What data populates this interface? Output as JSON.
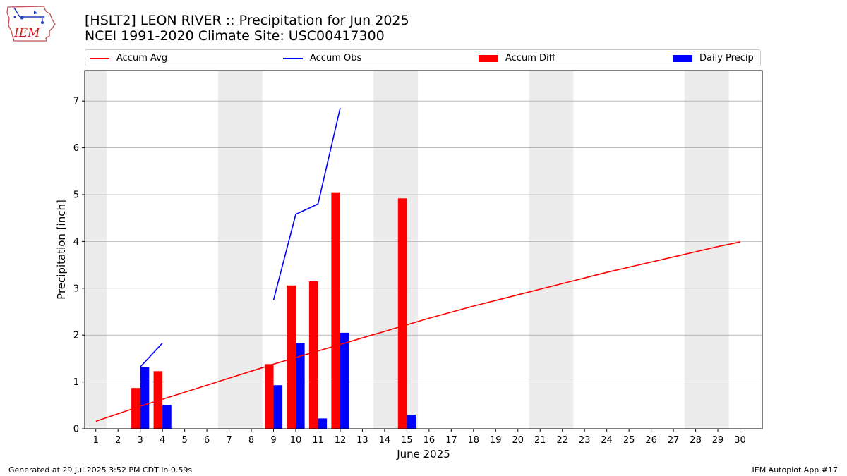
{
  "logo": {
    "text": "IEM"
  },
  "title_line1": "[HSLT2] LEON RIVER :: Precipitation for Jun 2025",
  "title_line2": "NCEI 1991-2020 Climate Site: USC00417300",
  "footer_left": "Generated at 29 Jul 2025 3:52 PM CDT in 0.59s",
  "footer_right": "IEM Autoplot App #17",
  "legend": [
    {
      "label": "Accum Avg",
      "kind": "line",
      "color": "#ff0000"
    },
    {
      "label": "Accum Obs",
      "kind": "line",
      "color": "#0000ff"
    },
    {
      "label": "Accum Diff",
      "kind": "patch",
      "color": "#ff0000"
    },
    {
      "label": "Daily Precip",
      "kind": "patch",
      "color": "#0000ff"
    }
  ],
  "chart_data": {
    "type": "bar",
    "xlabel": "June 2025",
    "ylabel": "Precipitation [inch]",
    "xlim": [
      0.5,
      31
    ],
    "ylim": [
      0,
      7.65
    ],
    "yticks": [
      0,
      1,
      2,
      3,
      4,
      5,
      6,
      7
    ],
    "xticks": [
      1,
      2,
      3,
      4,
      5,
      6,
      7,
      8,
      9,
      10,
      11,
      12,
      13,
      14,
      15,
      16,
      17,
      18,
      19,
      20,
      21,
      22,
      23,
      24,
      25,
      26,
      27,
      28,
      29,
      30
    ],
    "grid": "horizontal",
    "weekend_shading": [
      [
        0.5,
        1.5
      ],
      [
        6.5,
        8.5
      ],
      [
        13.5,
        15.5
      ],
      [
        20.5,
        22.5
      ],
      [
        27.5,
        29.5
      ]
    ],
    "series": [
      {
        "name": "Accum Avg",
        "type": "line",
        "color": "#ff0000",
        "x": [
          1,
          2,
          3,
          4,
          5,
          6,
          7,
          8,
          9,
          10,
          11,
          12,
          13,
          14,
          15,
          16,
          17,
          18,
          19,
          20,
          21,
          22,
          23,
          24,
          25,
          26,
          27,
          28,
          29,
          30
        ],
        "values": [
          0.16,
          0.32,
          0.48,
          0.63,
          0.78,
          0.93,
          1.08,
          1.23,
          1.38,
          1.52,
          1.66,
          1.8,
          1.94,
          2.08,
          2.22,
          2.36,
          2.49,
          2.62,
          2.74,
          2.86,
          2.98,
          3.1,
          3.22,
          3.34,
          3.45,
          3.56,
          3.67,
          3.78,
          3.89,
          3.99
        ]
      },
      {
        "name": "Accum Obs",
        "type": "line",
        "color": "#0000ff",
        "segments": [
          {
            "x": [
              3,
              4
            ],
            "values": [
              1.32,
              1.83
            ]
          },
          {
            "x": [
              9,
              10,
              11,
              12
            ],
            "values": [
              2.75,
              4.58,
              4.8,
              6.85
            ]
          }
        ]
      },
      {
        "name": "Accum Diff",
        "type": "bar",
        "color": "#ff0000",
        "x": [
          3,
          4,
          9,
          10,
          11,
          12,
          15
        ],
        "values": [
          0.87,
          1.23,
          1.38,
          3.06,
          3.15,
          5.05,
          4.92
        ]
      },
      {
        "name": "Daily Precip",
        "type": "bar",
        "color": "#0000ff",
        "x": [
          3,
          4,
          9,
          10,
          11,
          12,
          15
        ],
        "values": [
          1.32,
          0.51,
          0.93,
          1.83,
          0.22,
          2.05,
          0.3
        ]
      }
    ]
  }
}
